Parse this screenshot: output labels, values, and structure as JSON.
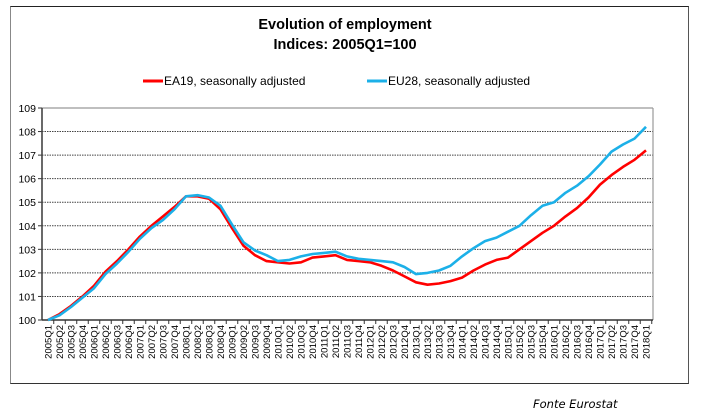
{
  "chart_data": {
    "type": "line",
    "title": "Evolution of employment",
    "subtitle": "Indices: 2005Q1=100",
    "xlabel": "",
    "ylabel": "",
    "ylim": [
      100,
      109
    ],
    "yticks": [
      100,
      101,
      102,
      103,
      104,
      105,
      106,
      107,
      108,
      109
    ],
    "grid": true,
    "legend_position": "top",
    "x": [
      "2005Q1",
      "2005Q2",
      "2005Q3",
      "2005Q4",
      "2006Q1",
      "2006Q2",
      "2006Q3",
      "2006Q4",
      "2007Q1",
      "2007Q2",
      "2007Q3",
      "2007Q4",
      "2008Q1",
      "2008Q2",
      "2008Q3",
      "2008Q4",
      "2009Q1",
      "2009Q2",
      "2009Q3",
      "2009Q4",
      "2010Q1",
      "2010Q2",
      "2010Q3",
      "2010Q4",
      "2011Q1",
      "2011Q2",
      "2011Q3",
      "2011Q4",
      "2012Q1",
      "2012Q2",
      "2012Q3",
      "2012Q4",
      "2013Q1",
      "2013Q2",
      "2013Q3",
      "2013Q4",
      "2014Q1",
      "2014Q2",
      "2014Q3",
      "2014Q4",
      "2015Q1",
      "2015Q2",
      "2015Q3",
      "2015Q4",
      "2016Q1",
      "2016Q2",
      "2016Q3",
      "2016Q4",
      "2017Q1",
      "2017Q2",
      "2017Q3",
      "2017Q4",
      "2018Q1"
    ],
    "series": [
      {
        "name": "EA19, seasonally adjusted",
        "color": "#ff0000",
        "values": [
          100.0,
          100.25,
          100.6,
          101.0,
          101.45,
          102.05,
          102.5,
          103.0,
          103.55,
          104.0,
          104.4,
          104.8,
          105.25,
          105.25,
          105.15,
          104.7,
          103.9,
          103.15,
          102.75,
          102.5,
          102.45,
          102.4,
          102.45,
          102.65,
          102.7,
          102.75,
          102.55,
          102.5,
          102.45,
          102.3,
          102.1,
          101.85,
          101.6,
          101.5,
          101.55,
          101.65,
          101.8,
          102.1,
          102.35,
          102.55,
          102.65,
          103.0,
          103.35,
          103.7,
          104.0,
          104.4,
          104.75,
          105.2,
          105.75,
          106.15,
          106.5,
          106.8,
          107.2
        ]
      },
      {
        "name": "EU28, seasonally adjusted",
        "color": "#1cb0e8",
        "values": [
          100.0,
          100.2,
          100.55,
          100.95,
          101.35,
          101.95,
          102.4,
          102.9,
          103.45,
          103.9,
          104.25,
          104.7,
          105.25,
          105.3,
          105.2,
          104.85,
          104.05,
          103.3,
          102.95,
          102.75,
          102.5,
          102.55,
          102.7,
          102.8,
          102.85,
          102.9,
          102.7,
          102.6,
          102.55,
          102.5,
          102.45,
          102.25,
          101.95,
          102.0,
          102.1,
          102.3,
          102.7,
          103.05,
          103.35,
          103.5,
          103.75,
          104.0,
          104.45,
          104.85,
          105.0,
          105.4,
          105.7,
          106.1,
          106.6,
          107.15,
          107.45,
          107.7,
          108.2
        ]
      }
    ]
  },
  "footer": {
    "source": "Fonte Eurostat"
  }
}
